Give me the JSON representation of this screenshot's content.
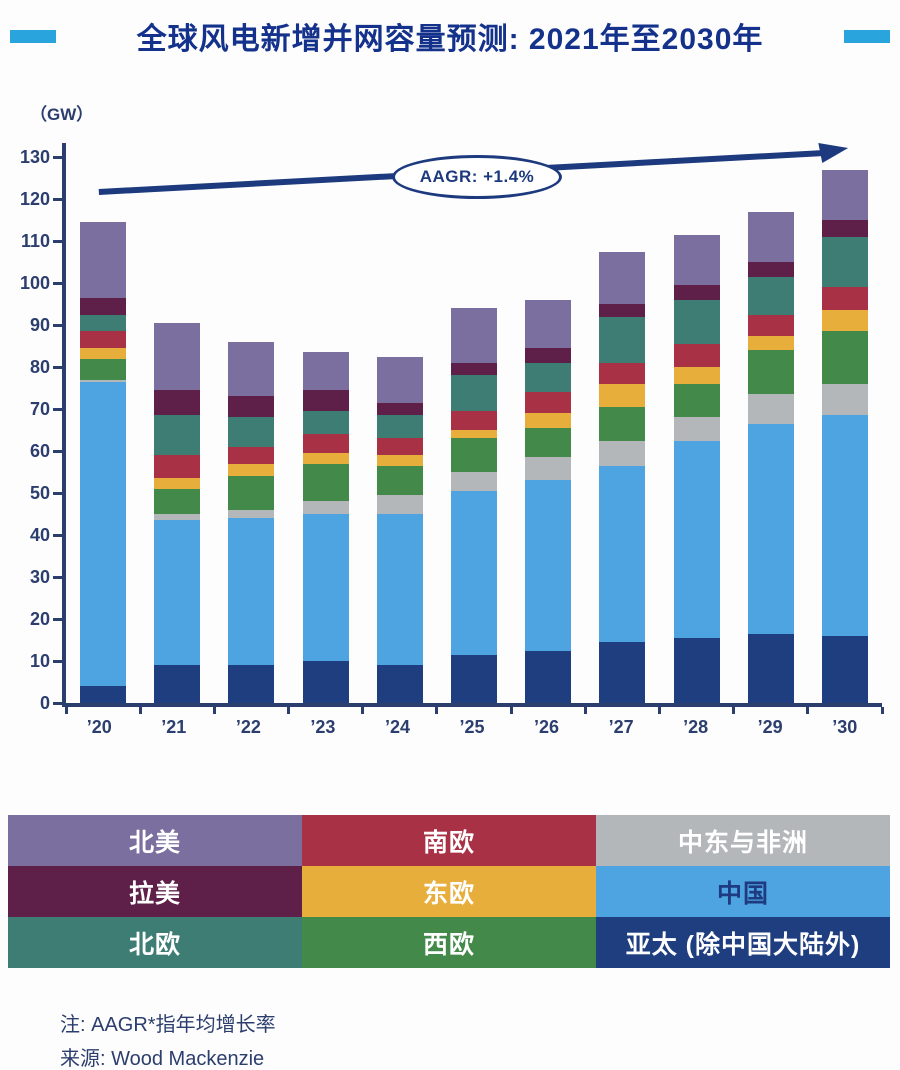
{
  "header": {
    "title": "全球风电新增并网容量预测: 2021年至2030年",
    "accent_color": "#29a4dc",
    "title_color": "#14328c"
  },
  "chart": {
    "unit_label": "（GW）",
    "aagr_label": "AAGR: +1.4%"
  },
  "chart_data": {
    "type": "bar",
    "stacked": true,
    "title": "全球风电新增并网容量预测: 2021年至2030年",
    "ylabel": "（GW）",
    "ylim": [
      0,
      130
    ],
    "yticks": [
      0,
      10,
      20,
      30,
      40,
      50,
      60,
      70,
      80,
      90,
      100,
      110,
      120,
      130
    ],
    "categories": [
      "’20",
      "’21",
      "’22",
      "’23",
      "’24",
      "’25",
      "’26",
      "’27",
      "’28",
      "’29",
      "’30"
    ],
    "series": [
      {
        "name": "亚太 (除中国大陆外)",
        "color": "#1f3e80",
        "values": [
          4,
          9,
          9,
          10,
          9,
          11.5,
          12.5,
          14.5,
          15.5,
          16.5,
          16
        ]
      },
      {
        "name": "中国",
        "color": "#4ea4e0",
        "values": [
          72.5,
          34.5,
          35,
          35,
          36,
          39,
          40.5,
          42,
          47,
          50,
          52.5
        ]
      },
      {
        "name": "中东与非洲",
        "color": "#b4b7ba",
        "values": [
          0.5,
          1.5,
          2,
          3,
          4.5,
          4.5,
          5.5,
          6,
          5.5,
          7,
          7.5
        ]
      },
      {
        "name": "西欧",
        "color": "#42894a",
        "values": [
          5,
          6,
          8,
          9,
          7,
          8,
          7,
          8,
          8,
          10.5,
          12.5
        ]
      },
      {
        "name": "东欧",
        "color": "#e8ae3c",
        "values": [
          2.5,
          2.5,
          3,
          2.5,
          2.5,
          2,
          3.5,
          5.5,
          4,
          3.5,
          5
        ]
      },
      {
        "name": "南欧",
        "color": "#a93145",
        "values": [
          4,
          5.5,
          4,
          4.5,
          4,
          4.5,
          5,
          5,
          5.5,
          5,
          5.5
        ]
      },
      {
        "name": "北欧",
        "color": "#3d7d73",
        "values": [
          4,
          9.5,
          7,
          5.5,
          5.5,
          8.5,
          7,
          11,
          10.5,
          9,
          12
        ]
      },
      {
        "name": "拉美",
        "color": "#5e1f49",
        "values": [
          4,
          6,
          5,
          5,
          3,
          3,
          3.5,
          3,
          3.5,
          3.5,
          4
        ]
      },
      {
        "name": "北美",
        "color": "#7a6f9e",
        "values": [
          18,
          16,
          13,
          9,
          11,
          13,
          11.5,
          12.5,
          12,
          12,
          12
        ]
      }
    ],
    "totals": [
      114.5,
      90.5,
      86,
      83.5,
      82.5,
      94,
      96,
      107.5,
      111.5,
      117,
      127
    ],
    "annotation": {
      "label": "AAGR: +1.4%",
      "shape": "ellipse-on-arrow"
    },
    "legend_position": "bottom-grid-3x3",
    "grid": false
  },
  "legend": {
    "cells": [
      {
        "label": "北美",
        "color": "#7a6f9e",
        "text_color": "#ffffff"
      },
      {
        "label": "南欧",
        "color": "#a93145",
        "text_color": "#ffffff"
      },
      {
        "label": "中东与非洲",
        "color": "#b4b7ba",
        "text_color": "#ffffff"
      },
      {
        "label": "拉美",
        "color": "#5e1f49",
        "text_color": "#ffffff"
      },
      {
        "label": "东欧",
        "color": "#e8ae3c",
        "text_color": "#ffffff"
      },
      {
        "label": "中国",
        "color": "#4ea4e0",
        "text_color": "#1e3a80"
      },
      {
        "label": "北欧",
        "color": "#3d7d73",
        "text_color": "#ffffff"
      },
      {
        "label": "西欧",
        "color": "#42894a",
        "text_color": "#ffffff"
      },
      {
        "label": "亚太 (除中国大陆外)",
        "color": "#1f3e80",
        "text_color": "#ffffff"
      }
    ]
  },
  "footer": {
    "note": "注: AAGR*指年均增长率",
    "source": "来源: Wood Mackenzie"
  }
}
